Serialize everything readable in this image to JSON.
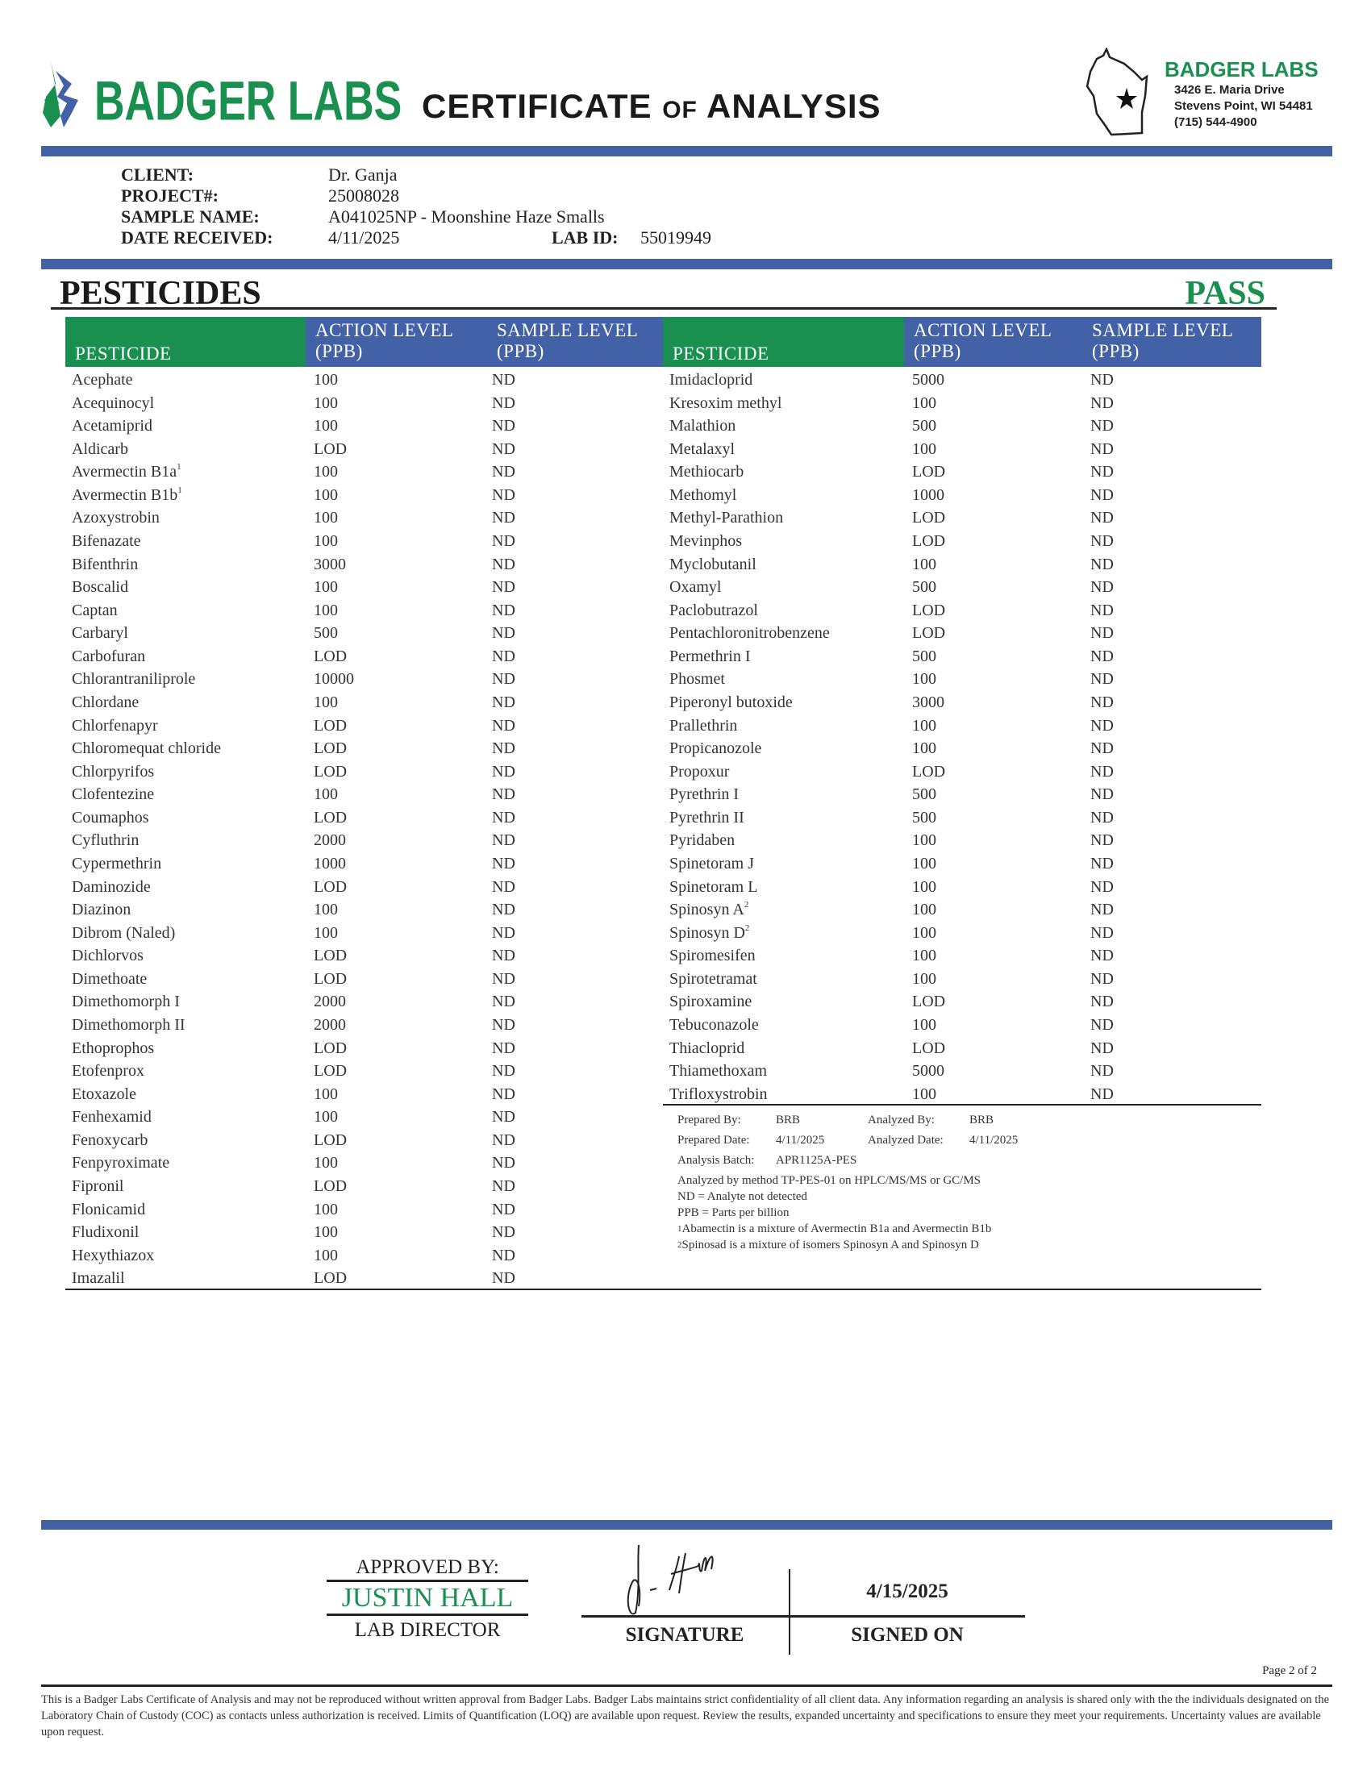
{
  "header": {
    "logo_text": "BADGER LABS",
    "title_main1": "CERTIFICATE",
    "title_of": "OF",
    "title_main2": "ANALYSIS",
    "address": {
      "name": "BADGER LABS",
      "street": "3426 E. Maria Drive",
      "city": "Stevens Point, WI 54481",
      "phone": "(715) 544-4900"
    }
  },
  "colors": {
    "green": "#1a9050",
    "blue": "#4361a6"
  },
  "client_info": {
    "client_label": "CLIENT:",
    "client": "Dr. Ganja",
    "project_label": "PROJECT#:",
    "project": "25008028",
    "sample_label": "SAMPLE NAME:",
    "sample": "A041025NP - Moonshine Haze Smalls",
    "date_label": "DATE RECEIVED:",
    "date": "4/11/2025",
    "labid_label": "LAB ID:",
    "labid": "55019949"
  },
  "section": {
    "title": "PESTICIDES",
    "result": "PASS"
  },
  "table_headers": {
    "pesticide": "PESTICIDE",
    "action": "ACTION LEVEL (PPB)",
    "sample": "SAMPLE LEVEL (PPB)"
  },
  "left_rows": [
    [
      "Acephate",
      "100",
      "ND"
    ],
    [
      "Acequinocyl",
      "100",
      "ND"
    ],
    [
      "Acetamiprid",
      "100",
      "ND"
    ],
    [
      "Aldicarb",
      "LOD",
      "ND"
    ],
    [
      "Avermectin B1a",
      "100",
      "ND",
      "1"
    ],
    [
      "Avermectin B1b",
      "100",
      "ND",
      "1"
    ],
    [
      "Azoxystrobin",
      "100",
      "ND"
    ],
    [
      "Bifenazate",
      "100",
      "ND"
    ],
    [
      "Bifenthrin",
      "3000",
      "ND"
    ],
    [
      "Boscalid",
      "100",
      "ND"
    ],
    [
      "Captan",
      "100",
      "ND"
    ],
    [
      "Carbaryl",
      "500",
      "ND"
    ],
    [
      "Carbofuran",
      "LOD",
      "ND"
    ],
    [
      "Chlorantraniliprole",
      "10000",
      "ND"
    ],
    [
      "Chlordane",
      "100",
      "ND"
    ],
    [
      "Chlorfenapyr",
      "LOD",
      "ND"
    ],
    [
      "Chloromequat chloride",
      "LOD",
      "ND"
    ],
    [
      "Chlorpyrifos",
      "LOD",
      "ND"
    ],
    [
      "Clofentezine",
      "100",
      "ND"
    ],
    [
      "Coumaphos",
      "LOD",
      "ND"
    ],
    [
      "Cyfluthrin",
      "2000",
      "ND"
    ],
    [
      "Cypermethrin",
      "1000",
      "ND"
    ],
    [
      "Daminozide",
      "LOD",
      "ND"
    ],
    [
      "Diazinon",
      "100",
      "ND"
    ],
    [
      "Dibrom (Naled)",
      "100",
      "ND"
    ],
    [
      "Dichlorvos",
      "LOD",
      "ND"
    ],
    [
      "Dimethoate",
      "LOD",
      "ND"
    ],
    [
      "Dimethomorph I",
      "2000",
      "ND"
    ],
    [
      "Dimethomorph II",
      "2000",
      "ND"
    ],
    [
      "Ethoprophos",
      "LOD",
      "ND"
    ],
    [
      "Etofenprox",
      "LOD",
      "ND"
    ],
    [
      "Etoxazole",
      "100",
      "ND"
    ],
    [
      "Fenhexamid",
      "100",
      "ND"
    ],
    [
      "Fenoxycarb",
      "LOD",
      "ND"
    ],
    [
      "Fenpyroximate",
      "100",
      "ND"
    ],
    [
      "Fipronil",
      "LOD",
      "ND"
    ],
    [
      "Flonicamid",
      "100",
      "ND"
    ],
    [
      "Fludixonil",
      "100",
      "ND"
    ],
    [
      "Hexythiazox",
      "100",
      "ND"
    ],
    [
      "Imazalil",
      "LOD",
      "ND"
    ]
  ],
  "right_rows": [
    [
      "Imidacloprid",
      "5000",
      "ND"
    ],
    [
      "Kresoxim methyl",
      "100",
      "ND"
    ],
    [
      "Malathion",
      "500",
      "ND"
    ],
    [
      "Metalaxyl",
      "100",
      "ND"
    ],
    [
      "Methiocarb",
      "LOD",
      "ND"
    ],
    [
      "Methomyl",
      "1000",
      "ND"
    ],
    [
      "Methyl-Parathion",
      "LOD",
      "ND"
    ],
    [
      "Mevinphos",
      "LOD",
      "ND"
    ],
    [
      "Myclobutanil",
      "100",
      "ND"
    ],
    [
      "Oxamyl",
      "500",
      "ND"
    ],
    [
      "Paclobutrazol",
      "LOD",
      "ND"
    ],
    [
      "Pentachloronitrobenzene",
      "LOD",
      "ND"
    ],
    [
      "Permethrin I",
      "500",
      "ND"
    ],
    [
      "Phosmet",
      "100",
      "ND"
    ],
    [
      "Piperonyl butoxide",
      "3000",
      "ND"
    ],
    [
      "Prallethrin",
      "100",
      "ND"
    ],
    [
      "Propicanozole",
      "100",
      "ND"
    ],
    [
      "Propoxur",
      "LOD",
      "ND"
    ],
    [
      "Pyrethrin I",
      "500",
      "ND"
    ],
    [
      "Pyrethrin II",
      "500",
      "ND"
    ],
    [
      "Pyridaben",
      "100",
      "ND"
    ],
    [
      "Spinetoram J",
      "100",
      "ND"
    ],
    [
      "Spinetoram L",
      "100",
      "ND"
    ],
    [
      "Spinosyn A",
      "100",
      "ND",
      "2"
    ],
    [
      "Spinosyn D",
      "100",
      "ND",
      "2"
    ],
    [
      "Spiromesifen",
      "100",
      "ND"
    ],
    [
      "Spirotetramat",
      "100",
      "ND"
    ],
    [
      "Spiroxamine",
      "LOD",
      "ND"
    ],
    [
      "Tebuconazole",
      "100",
      "ND"
    ],
    [
      "Thiacloprid",
      "LOD",
      "ND"
    ],
    [
      "Thiamethoxam",
      "5000",
      "ND"
    ],
    [
      "Trifloxystrobin",
      "100",
      "ND"
    ]
  ],
  "notes": {
    "prepared_by_label": "Prepared By:",
    "prepared_by": "BRB",
    "analyzed_by_label": "Analyzed By:",
    "analyzed_by": "BRB",
    "prepared_date_label": "Prepared Date:",
    "prepared_date": "4/11/2025",
    "analyzed_date_label": "Analyzed Date:",
    "analyzed_date": "4/11/2025",
    "batch_label": "Analysis Batch:",
    "batch": "APR1125A-PES",
    "method": "Analyzed by method TP-PES-01 on HPLC/MS/MS or GC/MS",
    "nd": "ND = Analyte not detected",
    "ppb": "PPB = Parts per billion",
    "fn1_mark": "1",
    "fn1": "Abamectin is a mixture of  Avermectin B1a and Avermectin B1b",
    "fn2_mark": "2",
    "fn2": "Spinosad is a mixture of  isomers Spinosyn A and Spinosyn D"
  },
  "approval": {
    "approved_by": "APPROVED BY:",
    "name": "JUSTIN HALL",
    "role": "LAB DIRECTOR",
    "signature_label": "SIGNATURE",
    "signed_on_label": "SIGNED ON",
    "signed_on": "4/15/2025"
  },
  "footer": {
    "page": "Page 2 of 2",
    "disclaimer": "This is a Badger Labs Certificate of Analysis and may not be reproduced without written approval from Badger Labs. Badger Labs maintains strict confidentiality of all client data. Any information regarding an analysis is shared only with the the individuals designated on the Laboratory Chain of Custody (COC) as contacts unless authorization is received. Limits of Quantification (LOQ) are available upon request. Review the results, expanded uncertainty and specifications to ensure they meet your requirements. Uncertainty values are available upon request."
  }
}
